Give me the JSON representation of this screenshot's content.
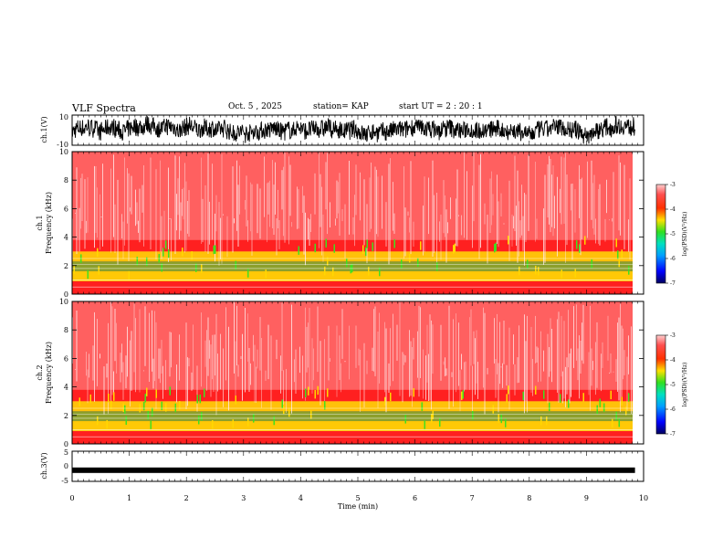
{
  "header": {
    "title": "VLF Spectra",
    "date": "Oct. 5 , 2025",
    "station": "station= KAP",
    "start": "start  UT =   2 : 20 : 1"
  },
  "chart_data": [
    {
      "type": "line",
      "name": "ch1-waveform",
      "ylabel": "ch.1(V)",
      "ylim": [
        -10,
        10
      ],
      "yticks": [
        "10",
        "-10"
      ],
      "xlim": [
        0,
        9.85
      ],
      "description_units": "volts vs minutes"
    },
    {
      "type": "heatmap",
      "name": "ch1-spectrogram",
      "ylabel": "ch.1\nFrequency (kHz)",
      "ylabel_line1": "ch.1",
      "ylabel_line2": "Frequency  (kHz)",
      "ylim": [
        0,
        10
      ],
      "yticks": [
        "0",
        "2",
        "4",
        "6",
        "8",
        "10"
      ],
      "xlim": [
        0,
        10
      ],
      "colorbar": {
        "label": "log(PSD)(V²/Hz)",
        "ticks": [
          "-3",
          "-4",
          "-5",
          "-6",
          "-7"
        ],
        "range": [
          -7,
          -3
        ]
      }
    },
    {
      "type": "heatmap",
      "name": "ch2-spectrogram",
      "ylabel_line1": "ch.2",
      "ylabel_line2": "Frequency  (kHz)",
      "ylim": [
        0,
        10
      ],
      "yticks": [
        "0",
        "2",
        "4",
        "6",
        "8",
        "10"
      ],
      "xlim": [
        0,
        10
      ],
      "colorbar": {
        "label": "log(PSD)(V²/Hz)",
        "ticks": [
          "-3",
          "-4",
          "-5",
          "-6",
          "-7"
        ],
        "range": [
          -7,
          -3
        ]
      }
    },
    {
      "type": "line",
      "name": "ch3-waveform",
      "ylabel": "ch.3(V)",
      "ylim": [
        -5,
        5
      ],
      "yticks": [
        "5",
        "0",
        "-5"
      ],
      "level": -1.3,
      "xlim": [
        0,
        9.85
      ]
    }
  ],
  "xaxis": {
    "label": "Time  (min)",
    "ticks": [
      "0",
      "1",
      "2",
      "3",
      "4",
      "5",
      "6",
      "7",
      "8",
      "9",
      "10"
    ]
  },
  "colors": {
    "red": "#ff2020",
    "yellow": "#ffd800",
    "green": "#40e020",
    "cyan": "#00d0ff",
    "blue": "#0000ff",
    "navy": "#000080"
  }
}
